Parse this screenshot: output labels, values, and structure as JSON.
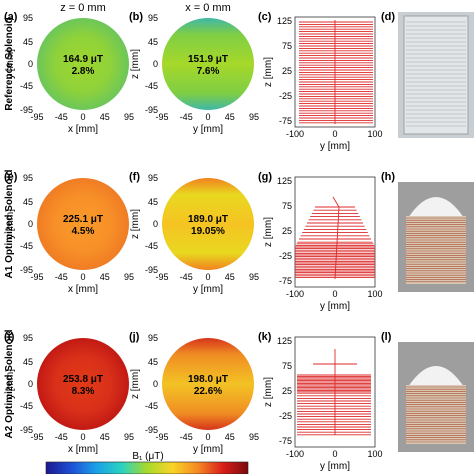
{
  "figure": {
    "column_headers": [
      "z = 0 mm",
      "x = 0 mm"
    ],
    "rows": [
      {
        "row_label": "Reference Solenoid",
        "panels": [
          {
            "tag": "(a)",
            "kind": "slice",
            "plane": "xy",
            "value": "164.9 μT",
            "pct": "2.8%",
            "colors": {
              "center": "#9fd72e",
              "mid": "#8fd23a",
              "edge": "#6cc65a"
            }
          },
          {
            "tag": "(b)",
            "kind": "slice",
            "plane": "yz",
            "value": "151.9 μT",
            "pct": "7.6%",
            "colors": {
              "center": "#a6d829",
              "mid": "#7fce45",
              "edge": "#3fb7a6"
            }
          },
          {
            "tag": "(c)",
            "kind": "windings",
            "xlabel": "y [mm]",
            "ylabel": "z [mm]"
          },
          {
            "tag": "(d)",
            "kind": "photo"
          }
        ]
      },
      {
        "row_label": "A1 Optimized Solenoid",
        "panels": [
          {
            "tag": "(e)",
            "kind": "slice",
            "plane": "xy",
            "value": "225.1 μT",
            "pct": "4.5%",
            "colors": {
              "center": "#fa9a2a",
              "mid": "#f79028",
              "edge": "#f07c24"
            }
          },
          {
            "tag": "(f)",
            "kind": "slice",
            "plane": "yz",
            "value": "189.0 μT",
            "pct": "19.05%",
            "colors": {
              "center": "#f6c323",
              "mid": "#e8d820",
              "edge": "#f2811f"
            }
          },
          {
            "tag": "(g)",
            "kind": "windings",
            "xlabel": "y [mm]",
            "ylabel": "z [mm]"
          },
          {
            "tag": "(h)",
            "kind": "photo"
          }
        ]
      },
      {
        "row_label": "A2 Optimized Solenoid",
        "panels": [
          {
            "tag": "(i)",
            "kind": "slice",
            "plane": "xy",
            "value": "253.8 μT",
            "pct": "8.3%",
            "colors": {
              "center": "#e23a16",
              "mid": "#d9301a",
              "edge": "#c21a14"
            }
          },
          {
            "tag": "(j)",
            "kind": "slice",
            "plane": "yz",
            "value": "198.0 μT",
            "pct": "22.6%",
            "colors": {
              "center": "#f2c324",
              "mid": "#f08d23",
              "edge": "#d6341a"
            }
          },
          {
            "tag": "(k)",
            "kind": "windings",
            "xlabel": "y [mm]",
            "ylabel": "z [mm]"
          },
          {
            "tag": "(l)",
            "kind": "photo"
          }
        ]
      }
    ],
    "slice_axes": {
      "xy": {
        "xlabel": "x [mm]",
        "ylabel": "y [mm]"
      },
      "yz": {
        "xlabel": "y [mm]",
        "ylabel": "z [mm]"
      },
      "ticks": [
        "-95",
        "-45",
        "0",
        "45",
        "95"
      ]
    },
    "winding_axes": {
      "x_ticks": [
        "-100",
        "0",
        "100"
      ],
      "y_ticks": [
        "125",
        "75",
        "25",
        "-25",
        "-75"
      ]
    },
    "colorbar": {
      "label": "B₁ (μT)",
      "colors": [
        "#1b1a8c",
        "#1f4fd6",
        "#1aa1e6",
        "#2bd3c0",
        "#a7d92c",
        "#f8d427",
        "#f58a24",
        "#d91e1a",
        "#7a0b0b"
      ]
    },
    "wire_color": "#dd2a2a"
  }
}
